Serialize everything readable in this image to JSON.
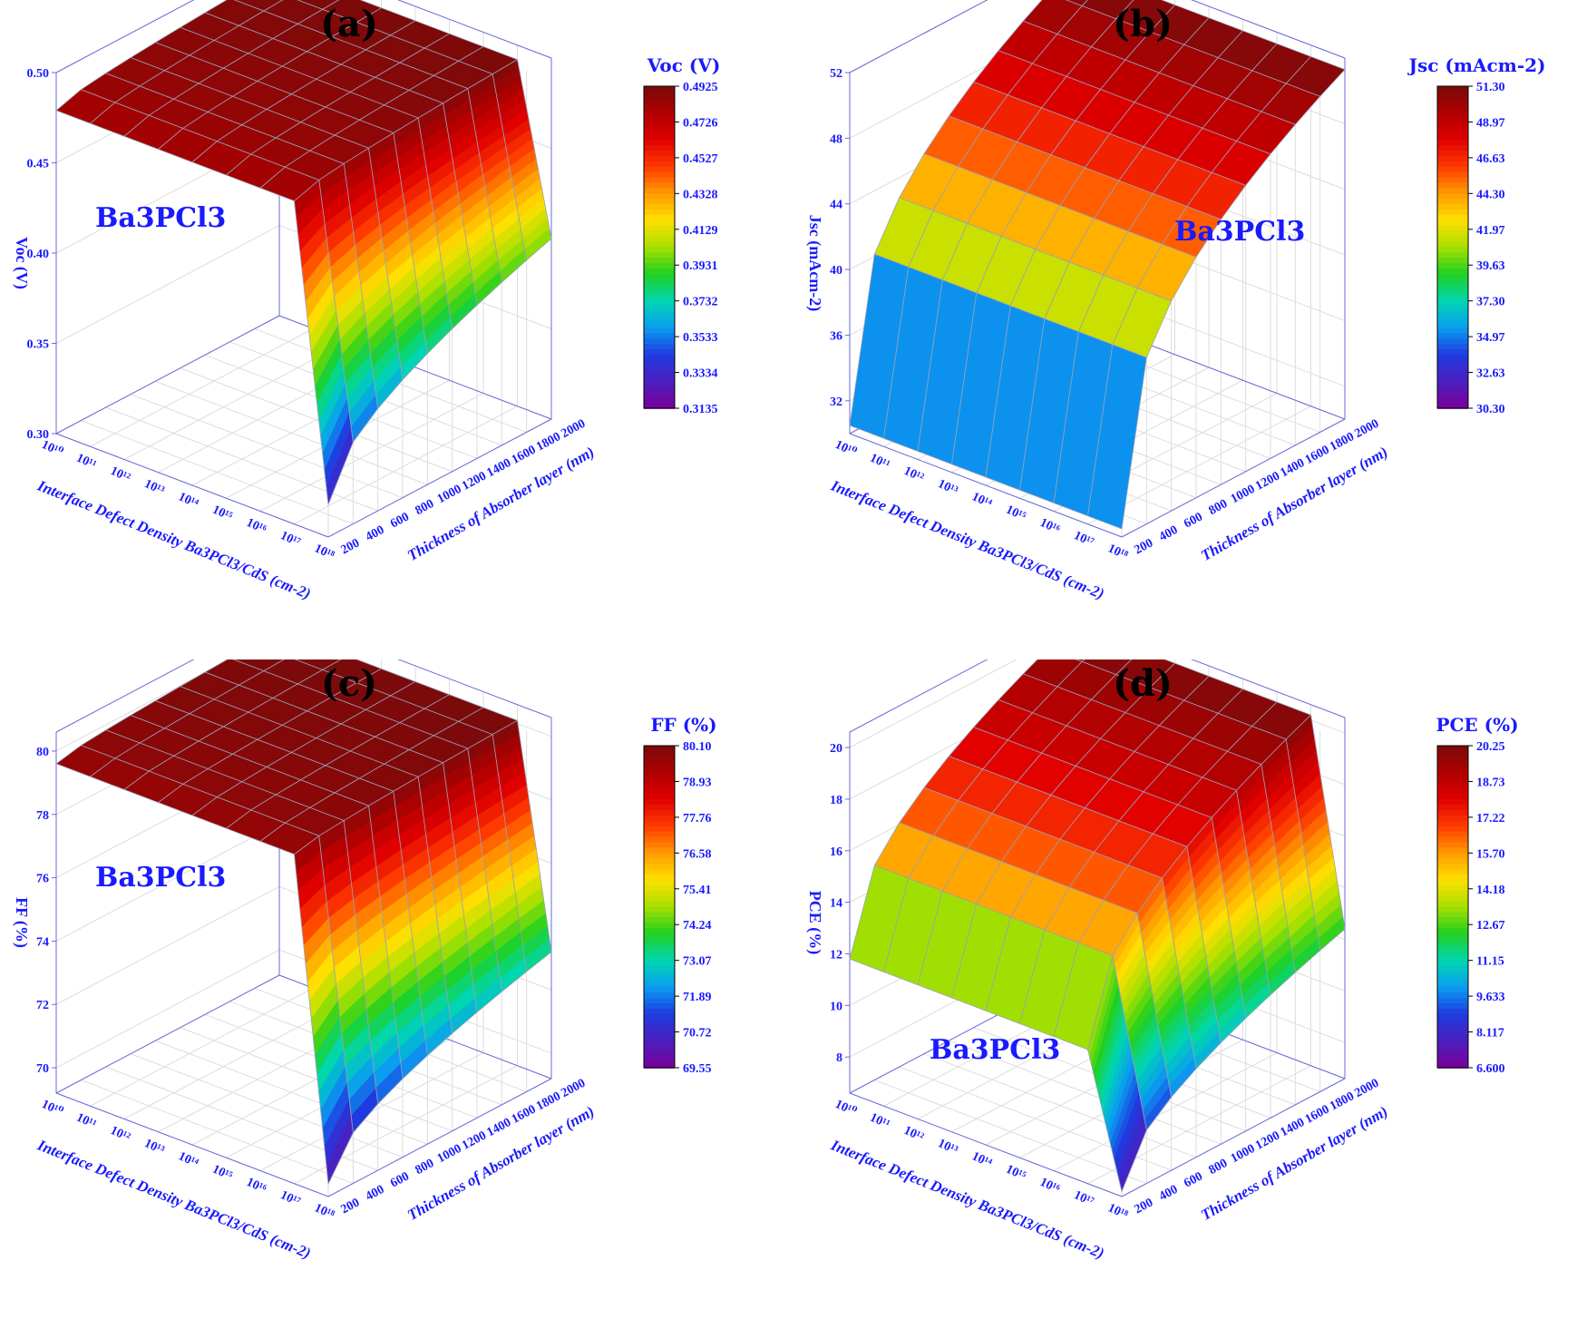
{
  "colors": {
    "text": "#1a1aff",
    "frame": "#6a6ad8",
    "grid": "#dddddd",
    "mesh": "#9aa0b8",
    "colormap": [
      "#7a0099",
      "#4b1fc0",
      "#1f3be0",
      "#0a9ef0",
      "#00d7b0",
      "#20d020",
      "#a8e000",
      "#ffe000",
      "#ff9a00",
      "#ff3a00",
      "#e00000",
      "#b00000",
      "#7a0a0a"
    ]
  },
  "chart_data": [
    {
      "type": "surface3d",
      "panel_label": "(a)",
      "annotation": "Ba3PCl3",
      "xlabel": "Interface Defect Density Ba3PCl3/CdS (cm-2)",
      "ylabel": "Thickness of Absorber layer (nm)",
      "zlabel": "Voc (V)",
      "x_ticks": [
        "10¹⁰",
        "10¹¹",
        "10¹²",
        "10¹³",
        "10¹⁴",
        "10¹⁵",
        "10¹⁶",
        "10¹⁷",
        "10¹⁸"
      ],
      "y_ticks": [
        "200",
        "400",
        "600",
        "800",
        "1000",
        "1200",
        "1400",
        "1600",
        "1800",
        "2000"
      ],
      "z_ticks": [
        "0.30",
        "0.35",
        "0.40",
        "0.45",
        "0.50"
      ],
      "zlim": [
        0.3,
        0.5
      ],
      "colorbar_title": "Voc (V)",
      "colorbar_ticks": [
        "0.4925",
        "0.4726",
        "0.4527",
        "0.4328",
        "0.4129",
        "0.3931",
        "0.3732",
        "0.3533",
        "0.3334",
        "0.3135"
      ],
      "colorbar_range": [
        0.3135,
        0.4925
      ],
      "drop_shape": "sharp",
      "plateau_start": 0.479,
      "plateau_end": 0.492,
      "drop_min": 0.318,
      "drop_max": 0.4
    },
    {
      "type": "surface3d",
      "panel_label": "(b)",
      "annotation": "Ba3PCl3",
      "xlabel": "Interface Defect Density Ba3PCl3/CdS (cm-2)",
      "ylabel": "Thickness of Absorber layer (nm)",
      "zlabel": "Jsc (mAcm-2)",
      "x_ticks": [
        "10¹⁰",
        "10¹¹",
        "10¹²",
        "10¹³",
        "10¹⁴",
        "10¹⁵",
        "10¹⁶",
        "10¹⁷",
        "10¹⁸"
      ],
      "y_ticks": [
        "200",
        "400",
        "600",
        "800",
        "1000",
        "1200",
        "1400",
        "1600",
        "1800",
        "2000"
      ],
      "z_ticks": [
        "32",
        "36",
        "40",
        "44",
        "48",
        "52"
      ],
      "zlim": [
        30,
        52
      ],
      "colorbar_title": "Jsc (mAcm-2)",
      "colorbar_ticks": [
        "51.30",
        "48.97",
        "46.63",
        "44.30",
        "41.97",
        "39.63",
        "37.30",
        "34.97",
        "32.63",
        "30.30"
      ],
      "colorbar_range": [
        30.3,
        51.3
      ],
      "drop_shape": "thickness",
      "plateau_start": 30.5,
      "plateau_end": 51.3,
      "drop_min": 30.5,
      "drop_max": 30.5
    },
    {
      "type": "surface3d",
      "panel_label": "(c)",
      "annotation": "Ba3PCl3",
      "xlabel": "Interface Defect Density Ba3PCl3/CdS (cm-2)",
      "ylabel": "Thickness of Absorber layer (nm)",
      "zlabel": "FF (%)",
      "x_ticks": [
        "10¹⁰",
        "10¹¹",
        "10¹²",
        "10¹³",
        "10¹⁴",
        "10¹⁵",
        "10¹⁶",
        "10¹⁷",
        "10¹⁸"
      ],
      "y_ticks": [
        "200",
        "400",
        "600",
        "800",
        "1000",
        "1200",
        "1400",
        "1600",
        "1800",
        "2000"
      ],
      "z_ticks": [
        "70",
        "72",
        "74",
        "76",
        "78",
        "80"
      ],
      "zlim": [
        69.2,
        80.6
      ],
      "colorbar_title": "FF (%)",
      "colorbar_ticks": [
        "80.10",
        "78.93",
        "77.76",
        "76.58",
        "75.41",
        "74.24",
        "73.07",
        "71.89",
        "70.72",
        "69.55"
      ],
      "colorbar_range": [
        69.55,
        80.1
      ],
      "drop_shape": "sharp",
      "plateau_start": 79.6,
      "plateau_end": 80.1,
      "drop_min": 69.6,
      "drop_max": 73.2
    },
    {
      "type": "surface3d",
      "panel_label": "(d)",
      "annotation": "Ba3PCl3",
      "xlabel": "Interface Defect Density Ba3PCl3/CdS (cm-2)",
      "ylabel": "Thickness of Absorber layer (nm)",
      "zlabel": "PCE (%)",
      "x_ticks": [
        "10¹⁰",
        "10¹¹",
        "10¹²",
        "10¹³",
        "10¹⁴",
        "10¹⁵",
        "10¹⁶",
        "10¹⁷",
        "10¹⁸"
      ],
      "y_ticks": [
        "200",
        "400",
        "600",
        "800",
        "1000",
        "1200",
        "1400",
        "1600",
        "1800",
        "2000"
      ],
      "z_ticks": [
        "8",
        "10",
        "12",
        "14",
        "16",
        "18",
        "20"
      ],
      "zlim": [
        6.6,
        20.6
      ],
      "colorbar_title": "PCE (%)",
      "colorbar_ticks": [
        "20.25",
        "18.73",
        "17.22",
        "15.70",
        "14.18",
        "12.67",
        "11.15",
        "9.633",
        "8.117",
        "6.600"
      ],
      "colorbar_range": [
        6.6,
        20.25
      ],
      "drop_shape": "both",
      "plateau_start": 11.8,
      "plateau_end": 20.2,
      "drop_min": 6.8,
      "drop_max": 12.4
    }
  ]
}
